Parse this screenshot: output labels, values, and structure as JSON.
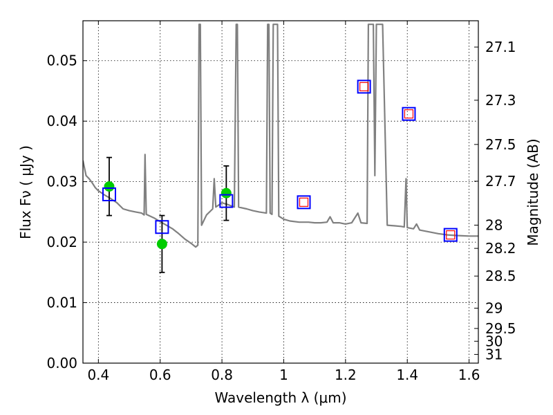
{
  "chart_data": {
    "type": "line",
    "xlabel": "Wavelength  λ (μm)",
    "ylabel": "Flux  Fν  ( μJy )",
    "y2label": "Magnitude (AB)",
    "xlim": [
      0.35,
      1.63
    ],
    "ylim": [
      0.0,
      0.0566
    ],
    "x_ticks": [
      0.4,
      0.6,
      0.8,
      1.0,
      1.2,
      1.4,
      1.6
    ],
    "x_tick_labels": [
      "0.4",
      "0.6",
      "0.8",
      "1",
      "1.2",
      "1.4",
      "1.6"
    ],
    "y_ticks": [
      0.0,
      0.01,
      0.02,
      0.03,
      0.04,
      0.05
    ],
    "y_tick_labels": [
      "0.00",
      "0.01",
      "0.02",
      "0.03",
      "0.04",
      "0.05"
    ],
    "y2_ticks": [
      {
        "label": "27.1",
        "flux": 0.05225
      },
      {
        "label": "27.3",
        "flux": 0.04346
      },
      {
        "label": "27.5",
        "flux": 0.03615
      },
      {
        "label": "27.7",
        "flux": 0.03007
      },
      {
        "label": "28",
        "flux": 0.02281
      },
      {
        "label": "28.2",
        "flux": 0.01897
      },
      {
        "label": "28.5",
        "flux": 0.01439
      },
      {
        "label": "29",
        "flux": 0.00908
      },
      {
        "label": "29.5",
        "flux": 0.00573
      },
      {
        "label": "30",
        "flux": 0.00362
      },
      {
        "label": "31",
        "flux": 0.00144
      }
    ],
    "grid": true,
    "series": [
      {
        "type": "line",
        "color": "#808080",
        "points": [
          [
            0.35,
            0.0335
          ],
          [
            0.36,
            0.031
          ],
          [
            0.37,
            0.0305
          ],
          [
            0.38,
            0.0298
          ],
          [
            0.39,
            0.029
          ],
          [
            0.4,
            0.0285
          ],
          [
            0.42,
            0.0278
          ],
          [
            0.44,
            0.0272
          ],
          [
            0.46,
            0.0265
          ],
          [
            0.48,
            0.0255
          ],
          [
            0.5,
            0.0252
          ],
          [
            0.52,
            0.025
          ],
          [
            0.54,
            0.0248
          ],
          [
            0.548,
            0.0245
          ],
          [
            0.551,
            0.0345
          ],
          [
            0.555,
            0.0246
          ],
          [
            0.58,
            0.024
          ],
          [
            0.6,
            0.0234
          ],
          [
            0.62,
            0.0228
          ],
          [
            0.64,
            0.0222
          ],
          [
            0.66,
            0.0214
          ],
          [
            0.68,
            0.0205
          ],
          [
            0.7,
            0.0198
          ],
          [
            0.715,
            0.0192
          ],
          [
            0.722,
            0.0195
          ],
          [
            0.726,
            0.056
          ],
          [
            0.73,
            0.056
          ],
          [
            0.734,
            0.0228
          ],
          [
            0.75,
            0.0245
          ],
          [
            0.77,
            0.0255
          ],
          [
            0.775,
            0.0305
          ],
          [
            0.78,
            0.0258
          ],
          [
            0.8,
            0.0265
          ],
          [
            0.82,
            0.0262
          ],
          [
            0.84,
            0.0258
          ],
          [
            0.846,
            0.056
          ],
          [
            0.85,
            0.056
          ],
          [
            0.854,
            0.0258
          ],
          [
            0.88,
            0.0255
          ],
          [
            0.9,
            0.0252
          ],
          [
            0.92,
            0.025
          ],
          [
            0.944,
            0.0248
          ],
          [
            0.948,
            0.056
          ],
          [
            0.952,
            0.056
          ],
          [
            0.956,
            0.0248
          ],
          [
            0.962,
            0.0246
          ],
          [
            0.966,
            0.056
          ],
          [
            0.98,
            0.056
          ],
          [
            0.984,
            0.0243
          ],
          [
            1.0,
            0.0238
          ],
          [
            1.02,
            0.0235
          ],
          [
            1.05,
            0.0233
          ],
          [
            1.08,
            0.0233
          ],
          [
            1.1,
            0.0232
          ],
          [
            1.12,
            0.0232
          ],
          [
            1.14,
            0.0233
          ],
          [
            1.15,
            0.0242
          ],
          [
            1.16,
            0.0232
          ],
          [
            1.18,
            0.0232
          ],
          [
            1.2,
            0.023
          ],
          [
            1.22,
            0.0232
          ],
          [
            1.24,
            0.0248
          ],
          [
            1.25,
            0.0232
          ],
          [
            1.27,
            0.0231
          ],
          [
            1.274,
            0.056
          ],
          [
            1.29,
            0.056
          ],
          [
            1.295,
            0.031
          ],
          [
            1.3,
            0.056
          ],
          [
            1.32,
            0.056
          ],
          [
            1.335,
            0.0228
          ],
          [
            1.36,
            0.0227
          ],
          [
            1.38,
            0.0226
          ],
          [
            1.39,
            0.0225
          ],
          [
            1.396,
            0.0305
          ],
          [
            1.4,
            0.0224
          ],
          [
            1.42,
            0.0222
          ],
          [
            1.43,
            0.023
          ],
          [
            1.44,
            0.022
          ],
          [
            1.46,
            0.0218
          ],
          [
            1.48,
            0.0216
          ],
          [
            1.5,
            0.0214
          ],
          [
            1.53,
            0.0212
          ],
          [
            1.56,
            0.0211
          ],
          [
            1.6,
            0.021
          ],
          [
            1.63,
            0.021
          ]
        ]
      },
      {
        "type": "scatter",
        "marker": "circle",
        "color": "#00cc00",
        "points": [
          {
            "x": 0.435,
            "y": 0.0292,
            "yerr": [
              0.0048,
              0.0048
            ]
          },
          {
            "x": 0.606,
            "y": 0.0197,
            "yerr": [
              0.0047,
              0.0047
            ]
          },
          {
            "x": 0.814,
            "y": 0.0281,
            "yerr": [
              0.0045,
              0.0045
            ]
          }
        ]
      },
      {
        "type": "scatter",
        "marker": "square-open",
        "color": "#0000ff",
        "points": [
          {
            "x": 0.435,
            "y": 0.0279
          },
          {
            "x": 0.606,
            "y": 0.0225
          },
          {
            "x": 0.814,
            "y": 0.0268
          },
          {
            "x": 1.065,
            "y": 0.0266
          },
          {
            "x": 1.26,
            "y": 0.0457
          },
          {
            "x": 1.405,
            "y": 0.0412
          },
          {
            "x": 1.54,
            "y": 0.0212
          }
        ]
      },
      {
        "type": "scatter",
        "marker": "square-open-small",
        "color": "#ff0000",
        "points": [
          {
            "x": 1.065,
            "y": 0.0266
          },
          {
            "x": 1.26,
            "y": 0.0457
          },
          {
            "x": 1.405,
            "y": 0.0412
          },
          {
            "x": 1.54,
            "y": 0.0212
          }
        ]
      }
    ]
  }
}
